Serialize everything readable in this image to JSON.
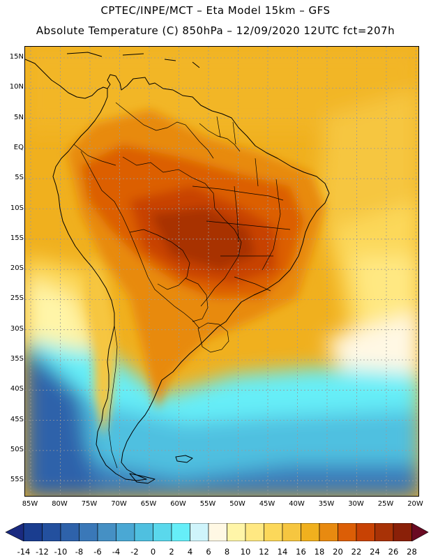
{
  "header": {
    "line1": "CPTEC/INPE/MCT –  Eta Model 15km – GFS",
    "line2": "Absolute Temperature (C) 850hPa – 12/09/2020 12UTC fct=207h"
  },
  "map": {
    "lat_labels": [
      "15N",
      "10N",
      "5N",
      "EQ",
      "5S",
      "10S",
      "15S",
      "20S",
      "25S",
      "30S",
      "35S",
      "40S",
      "45S",
      "50S",
      "55S"
    ],
    "lon_labels": [
      "85W",
      "80W",
      "75W",
      "70W",
      "65W",
      "60W",
      "55W",
      "50W",
      "45W",
      "40W",
      "35W",
      "30W",
      "25W",
      "20W"
    ],
    "graticule_color": "#9a9a9a",
    "coastline_color": "#000000"
  },
  "colorbar": {
    "labels": [
      "-14",
      "-12",
      "-10",
      "-8",
      "-6",
      "-4",
      "-2",
      "0",
      "2",
      "4",
      "6",
      "8",
      "10",
      "12",
      "14",
      "16",
      "18",
      "20",
      "22",
      "24",
      "26",
      "28"
    ],
    "colors": [
      "#1a3d8f",
      "#23509e",
      "#2e62aa",
      "#3a78b8",
      "#4590c4",
      "#4aa8d4",
      "#4fc0e0",
      "#5ad8ec",
      "#66eef8",
      "#cff4fb",
      "#fff8e4",
      "#fff5a8",
      "#ffe882",
      "#fcd85a",
      "#f6c640",
      "#f0b01e",
      "#e88a10",
      "#dc5e06",
      "#c84204",
      "#a83206",
      "#8a2008"
    ],
    "under_color": "#1a2a80",
    "over_color": "#6a0a22"
  }
}
